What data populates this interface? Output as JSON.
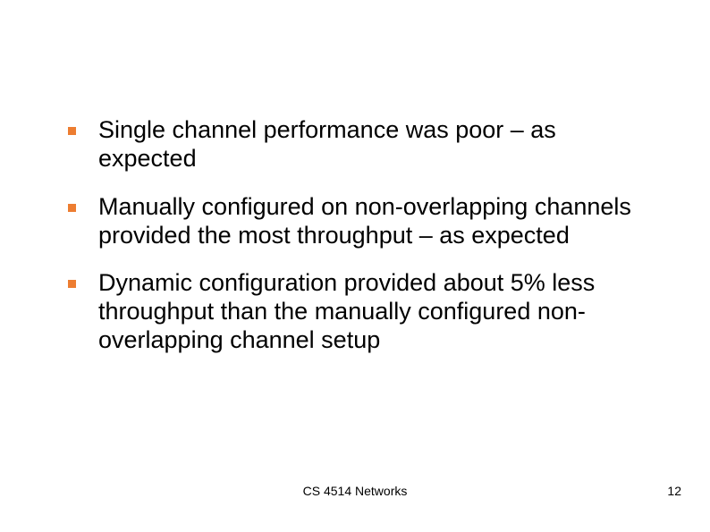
{
  "slide": {
    "bullets": [
      "Single channel performance was poor – as expected",
      "Manually configured on non-overlapping channels provided the most throughput – as expected",
      "Dynamic configuration provided about 5% less throughput than the manually configured non-overlapping channel setup"
    ],
    "bullet_color": "#ed7d31",
    "text_color": "#000000",
    "background_color": "#ffffff",
    "body_fontsize": 27,
    "footer_fontsize": 14
  },
  "footer": {
    "center": "CS 4514 Networks",
    "page_number": "12"
  }
}
